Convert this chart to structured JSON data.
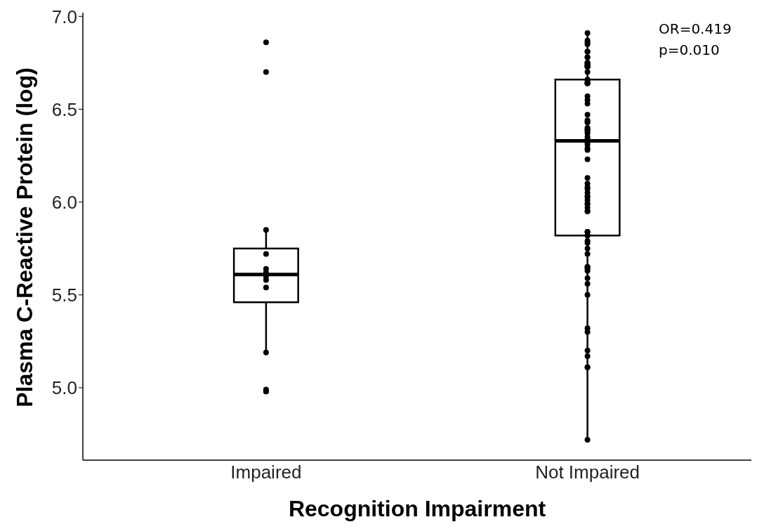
{
  "chart_data": {
    "type": "box",
    "xlabel": "Recognition Impairment",
    "ylabel": "Plasma C-Reactive Protein (log)",
    "categories": [
      "Impaired",
      "Not Impaired"
    ],
    "boxes": [
      {
        "low": 5.2,
        "q1": 5.46,
        "median": 5.61,
        "q3": 5.75,
        "high": 5.84
      },
      {
        "low": 4.72,
        "q1": 5.82,
        "median": 6.33,
        "q3": 6.66,
        "high": 6.91
      }
    ],
    "series": [
      {
        "type": "scatter",
        "color": "#000000",
        "x": [
          "Impaired",
          "Impaired",
          "Impaired",
          "Impaired",
          "Impaired",
          "Impaired",
          "Impaired",
          "Impaired",
          "Impaired",
          "Impaired",
          "Impaired",
          "Impaired",
          "Impaired",
          "Not Impaired",
          "Not Impaired",
          "Not Impaired",
          "Not Impaired",
          "Not Impaired",
          "Not Impaired",
          "Not Impaired",
          "Not Impaired",
          "Not Impaired",
          "Not Impaired",
          "Not Impaired",
          "Not Impaired",
          "Not Impaired",
          "Not Impaired",
          "Not Impaired",
          "Not Impaired",
          "Not Impaired",
          "Not Impaired",
          "Not Impaired",
          "Not Impaired",
          "Not Impaired",
          "Not Impaired",
          "Not Impaired",
          "Not Impaired",
          "Not Impaired",
          "Not Impaired",
          "Not Impaired",
          "Not Impaired",
          "Not Impaired",
          "Not Impaired",
          "Not Impaired",
          "Not Impaired",
          "Not Impaired",
          "Not Impaired",
          "Not Impaired",
          "Not Impaired",
          "Not Impaired",
          "Not Impaired",
          "Not Impaired",
          "Not Impaired",
          "Not Impaired",
          "Not Impaired",
          "Not Impaired",
          "Not Impaired",
          "Not Impaired",
          "Not Impaired",
          "Not Impaired",
          "Not Impaired",
          "Not Impaired",
          "Not Impaired",
          "Not Impaired",
          "Not Impaired",
          "Not Impaired",
          "Not Impaired",
          "Not Impaired",
          "Not Impaired",
          "Not Impaired",
          "Not Impaired",
          "Not Impaired",
          "Not Impaired",
          "Not Impaired",
          "Not Impaired",
          "Not Impaired",
          "Not Impaired",
          "Not Impaired",
          "Not Impaired",
          "Not Impaired",
          "Not Impaired",
          "Not Impaired",
          "Not Impaired",
          "Not Impaired",
          "Not Impaired",
          "Not Impaired",
          "Not Impaired",
          "Not Impaired",
          "Not Impaired",
          "Not Impaired"
        ],
        "values": [
          6.86,
          6.7,
          5.85,
          5.72,
          5.64,
          5.62,
          5.6,
          5.58,
          5.54,
          5.19,
          4.99,
          4.98,
          4.98,
          6.91,
          6.87,
          6.86,
          6.85,
          6.81,
          6.81,
          6.78,
          6.78,
          6.75,
          6.74,
          6.74,
          6.75,
          6.73,
          6.73,
          6.73,
          6.73,
          6.7,
          6.66,
          6.65,
          6.64,
          6.64,
          6.64,
          6.64,
          6.57,
          6.55,
          6.53,
          6.47,
          6.44,
          6.43,
          6.43,
          6.4,
          6.39,
          6.39,
          6.38,
          6.37,
          6.35,
          6.34,
          6.32,
          6.31,
          6.29,
          6.28,
          6.23,
          6.13,
          6.1,
          6.08,
          6.07,
          6.05,
          6.03,
          6.03,
          6.01,
          5.99,
          5.99,
          5.97,
          5.95,
          5.95,
          5.84,
          5.84,
          5.82,
          5.82,
          5.79,
          5.78,
          5.75,
          5.72,
          5.65,
          5.65,
          5.64,
          5.63,
          5.59,
          5.56,
          5.5,
          5.32,
          5.3,
          5.2,
          5.17,
          5.11,
          5.11,
          4.72
        ]
      }
    ],
    "ylim": [
      4.61,
      7.02
    ],
    "grid": false,
    "yticks": [
      {
        "value": 5,
        "label": "5.0"
      },
      5.5,
      {
        "value": 6,
        "label": "6.0"
      },
      6.5,
      {
        "value": 7,
        "label": "7.0"
      }
    ],
    "annotations": [
      "OR=0.419",
      "p=0.010"
    ]
  }
}
